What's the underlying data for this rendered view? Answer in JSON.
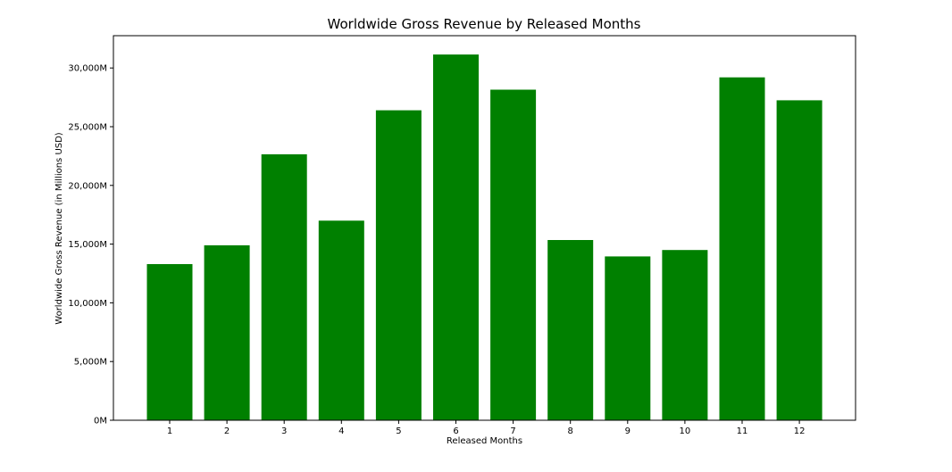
{
  "chart_data": {
    "type": "bar",
    "title": "Worldwide Gross Revenue by Released Months",
    "xlabel": "Released Months",
    "ylabel": "Worldwide Gross Revenue (in Millions USD)",
    "categories": [
      "1",
      "2",
      "3",
      "4",
      "5",
      "6",
      "7",
      "8",
      "9",
      "10",
      "11",
      "12"
    ],
    "values": [
      13300,
      14900,
      22650,
      17000,
      26400,
      31150,
      28150,
      15350,
      13950,
      14500,
      29200,
      27250
    ],
    "ylim": [
      0,
      32750
    ],
    "yticks": [
      0,
      5000,
      10000,
      15000,
      20000,
      25000,
      30000
    ],
    "ytick_labels": [
      "0M",
      "5,000M",
      "10,000M",
      "15,000M",
      "20,000M",
      "25,000M",
      "30,000M"
    ],
    "bar_color": "#008000",
    "grid": false,
    "legend": false
  }
}
